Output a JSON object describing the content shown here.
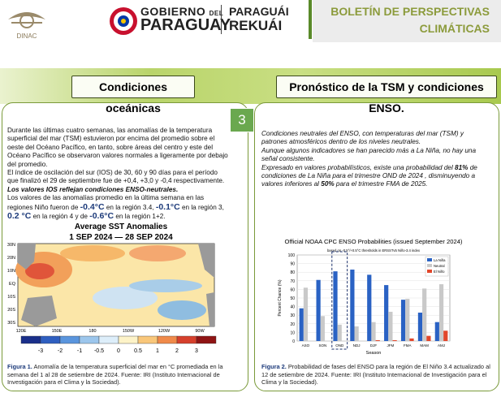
{
  "header": {
    "agency": "DINAC",
    "gov_line1": "GOBIERNO",
    "gov_del": "DEL",
    "gov_line2": "PARAGUAY",
    "guarani_line1": "PARAGUÁI",
    "guarani_line2": "REKUÁI",
    "bulletin_line1": "BOLETÍN DE PERSPECTIVAS",
    "bulletin_line2": "CLIMÁTICAS"
  },
  "sections": {
    "left_title": "Condiciones oceánicas",
    "right_title": "Pronóstico de la TSM y condiciones ENSO.",
    "page_number": "3"
  },
  "left_panel": {
    "paragraphs": [
      "Durante las últimas cuatro semanas, las anomalías de la temperatura superficial del mar (TSM) estuvieron por encima del promedio sobre el oeste del Océano Pacífico, en tanto, sobre áreas del centro y este del Océano Pacífico se observaron valores normales a ligeramente por debajo del promedio.",
      "El índice de oscilación del sur (IOS) de 30, 60 y 90 días para el período que finalizó el 29 de septiembre fue de +0,4, +3,0 y -0,4 respectivamente.",
      "Los valores IOS reflejan condiciones ENSO-neutrales."
    ],
    "nino_runs": [
      "Los valores de las anomalías promedio en la última semana en las regiones Niño fueron de ",
      "-0.4°C",
      " en la región 3.4, ",
      "-0.1°C",
      " en la región 3, ",
      "0.2 °C",
      " en la región 4 y de ",
      "-0.6°C",
      " en la región 1+2."
    ],
    "map": {
      "title": "Average SST Anomalies",
      "subtitle": "1 SEP 2024 — 28 SEP 2024",
      "lat_labels": [
        "30N",
        "20N",
        "10N",
        "EQ",
        "10S",
        "20S",
        "30S"
      ],
      "lon_labels": [
        "120E",
        "150E",
        "180",
        "150W",
        "120W",
        "90W"
      ],
      "colorbar_ticks": [
        -3,
        -2,
        -1,
        -0.5,
        0,
        0.5,
        1,
        2,
        3
      ]
    },
    "caption_label": "Figura 1.",
    "caption": " Anomalía de la temperatura superficial del mar en °C promediada en la semana del 1 al 28 de setiembre de 2024. Fuente: IRI (Instituto Internacional de Investigación para el Clima y la Sociedad)."
  },
  "right_panel": {
    "paragraphs": [
      "Condiciones neutrales del ENSO, con temperaturas del mar (TSM) y patrones atmosféricos dentro de los niveles neutrales.",
      "Aunque algunos indicadores se han parecido más a La Niña, no hay una señal consistente."
    ],
    "prob_runs": [
      "Expresado en valores probabilísticos, existe una probabilidad del ",
      "81%",
      " de condiciones de La Niña para el trimestre OND de 2024 , disminuyendo a valores inferiores al ",
      "50%",
      " para el trimestre FMA de 2025."
    ],
    "caption_label": "Figura 2.",
    "caption": " Probabilidad de fases del ENSO para la región de El Niño 3.4 actualizado al 12 de setiembre de 2024. Fuente: IRI (Instituto Internacional de Investigación para el Clima y la Sociedad)."
  },
  "chart_data": {
    "type": "bar",
    "title": "Official NOAA CPC ENSO Probabilities (issued September 2024)",
    "subtitle": "based on -0.5°/+0.5°C thresholds in ERSSTv5 Niño-3.4 index",
    "x_label": "Season",
    "y_label": "Percent Chance (%)",
    "categories": [
      "ASO",
      "SON",
      "OND",
      "NDJ",
      "DJF",
      "JFM",
      "FMA",
      "MAM",
      "AMJ"
    ],
    "series": [
      {
        "name": "La Niña",
        "color": "#2a62c4",
        "values": [
          38,
          71,
          81,
          83,
          77,
          65,
          48,
          33,
          22
        ]
      },
      {
        "name": "Neutral",
        "color": "#c9c9c9",
        "values": [
          62,
          29,
          19,
          17,
          22,
          34,
          49,
          61,
          66
        ]
      },
      {
        "name": "El Niño",
        "color": "#e2472b",
        "values": [
          0,
          0,
          0,
          0,
          1,
          1,
          3,
          6,
          12
        ]
      }
    ],
    "ylim": [
      0,
      100
    ],
    "yticks": [
      0,
      10,
      20,
      30,
      40,
      50,
      60,
      70,
      80,
      90,
      100
    ],
    "grid": true,
    "legend": "upper-right",
    "highlight": "OND"
  }
}
